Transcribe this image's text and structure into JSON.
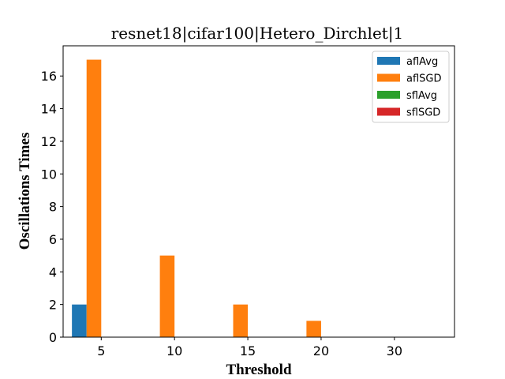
{
  "chart_data": {
    "type": "bar",
    "title": "resnet18|cifar100|Hetero_Dirchlet|1",
    "xlabel": "Threshold",
    "ylabel": "Oscillations Times",
    "categories": [
      "5",
      "10",
      "15",
      "20",
      "30"
    ],
    "series": [
      {
        "name": "aflAvg",
        "color": "#1f77b4",
        "values": [
          2,
          0,
          0,
          0,
          0
        ]
      },
      {
        "name": "aflSGD",
        "color": "#ff7f0e",
        "values": [
          17,
          5,
          2,
          1,
          0
        ]
      },
      {
        "name": "sflAvg",
        "color": "#2ca02c",
        "values": [
          0,
          0,
          0,
          0,
          0
        ]
      },
      {
        "name": "sflSGD",
        "color": "#d62728",
        "values": [
          0,
          0,
          0,
          0,
          0
        ]
      }
    ],
    "ylim": [
      0,
      17.85
    ],
    "yticks": [
      0,
      2,
      4,
      6,
      8,
      10,
      12,
      14,
      16
    ],
    "grid": false,
    "legend_position": "top-right"
  }
}
